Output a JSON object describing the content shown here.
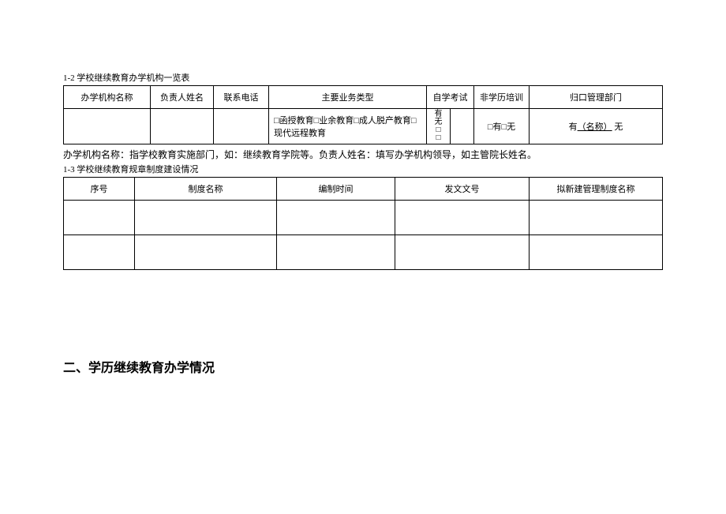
{
  "table1": {
    "caption": "1-2 学校继续教育办学机构一览表",
    "headers": {
      "c1": "办学机构名称",
      "c2": "负责人姓名",
      "c3": "联系电话",
      "c4": "主要业务类型",
      "c5": "自学考试",
      "c6": "非学历培训",
      "c7": "归口管理部门"
    },
    "row2": {
      "biz_types": "□函授教育□业余教育□成人脱产教育□现代远程教育",
      "self_exam_you": "有",
      "self_exam_wu": "无",
      "self_exam_box": "□",
      "nonacad": "□有□无",
      "mgmt_you": "有",
      "mgmt_name": "（名称）",
      "mgmt_wu": "  无"
    }
  },
  "note_text": "办学机构名称：指学校教育实施部门，如：继续教育学院等。负责人姓名：填写办学机构领导，如主管院长姓名。",
  "table2": {
    "caption": "1-3 学校继续教育规章制度建设情况",
    "headers": {
      "c1": "序号",
      "c2": "制度名称",
      "c3": "编制时间",
      "c4": "发文文号",
      "c5": "拟新建管理制度名称"
    }
  },
  "section2_title": "二、学历继续教育办学情况"
}
